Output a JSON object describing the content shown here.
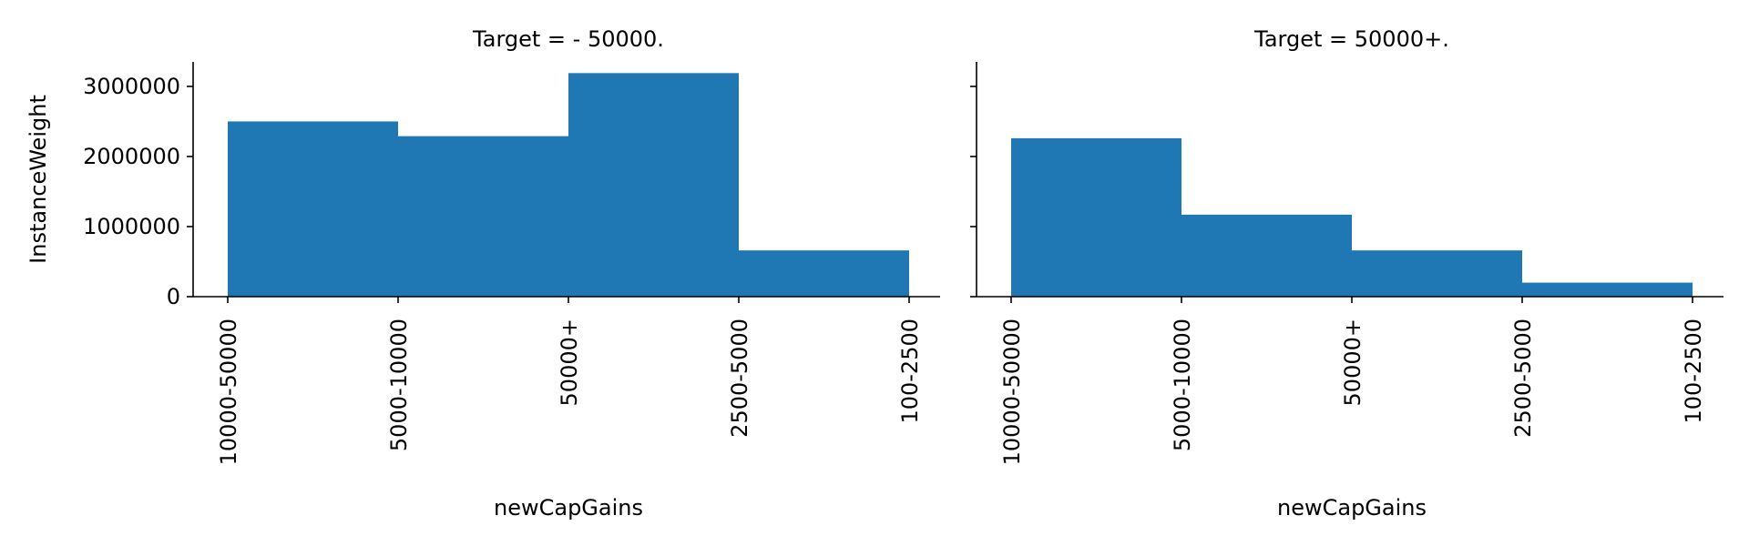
{
  "chart_data": [
    {
      "type": "bar",
      "title": "Target =  - 50000.",
      "xlabel": "newCapGains",
      "ylabel": "InstanceWeight",
      "categories": [
        "10000-50000",
        "5000-10000",
        "50000+",
        "2500-5000",
        "100-2500"
      ],
      "values": [
        2500000,
        2290000,
        3190000,
        660000,
        0
      ],
      "ylim": [
        0,
        3350000
      ],
      "yticks": [
        "0",
        "1000000",
        "2000000",
        "3000000"
      ],
      "color": "#1f77b4",
      "grid": false
    },
    {
      "type": "bar",
      "title": "Target =  50000+.",
      "xlabel": "newCapGains",
      "ylabel": "",
      "categories": [
        "10000-50000",
        "5000-10000",
        "50000+",
        "2500-5000",
        "100-2500"
      ],
      "values": [
        2260000,
        1170000,
        660000,
        200000,
        0
      ],
      "ylim": [
        0,
        3350000
      ],
      "yticks": [],
      "color": "#1f77b4",
      "grid": false
    }
  ]
}
